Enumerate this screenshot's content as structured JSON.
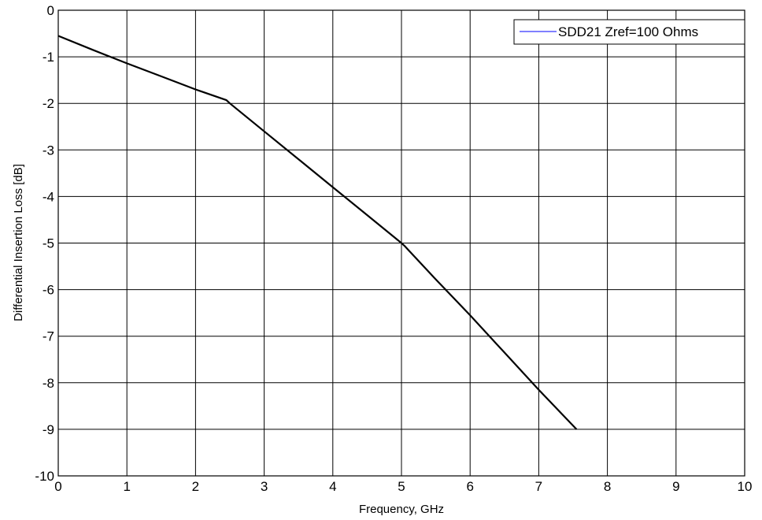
{
  "chart_data": {
    "type": "line",
    "xlabel": "Frequency, GHz",
    "ylabel": "Differential Insertion Loss [dB]",
    "xlim": [
      0,
      10
    ],
    "ylim": [
      -10,
      0
    ],
    "xticks": [
      0,
      1,
      2,
      3,
      4,
      5,
      6,
      7,
      8,
      9,
      10
    ],
    "yticks": [
      0,
      -1,
      -2,
      -3,
      -4,
      -5,
      -6,
      -7,
      -8,
      -9,
      -10
    ],
    "grid": true,
    "legend_position": "top-right",
    "series": [
      {
        "name": "SDD21 Zref=100 Ohms",
        "legend_color": "#0000ff",
        "line_color": "#000000",
        "x": [
          0,
          0.5,
          1.0,
          1.5,
          2.0,
          2.45,
          2.5,
          3.0,
          3.5,
          4.0,
          4.5,
          5.0,
          5.05,
          5.5,
          6.0,
          6.5,
          7.0,
          7.55
        ],
        "y": [
          -0.55,
          -0.85,
          -1.14,
          -1.42,
          -1.7,
          -1.93,
          -2.0,
          -2.6,
          -3.2,
          -3.8,
          -4.4,
          -5.0,
          -5.07,
          -5.78,
          -6.55,
          -7.35,
          -8.15,
          -9.0
        ]
      }
    ]
  }
}
